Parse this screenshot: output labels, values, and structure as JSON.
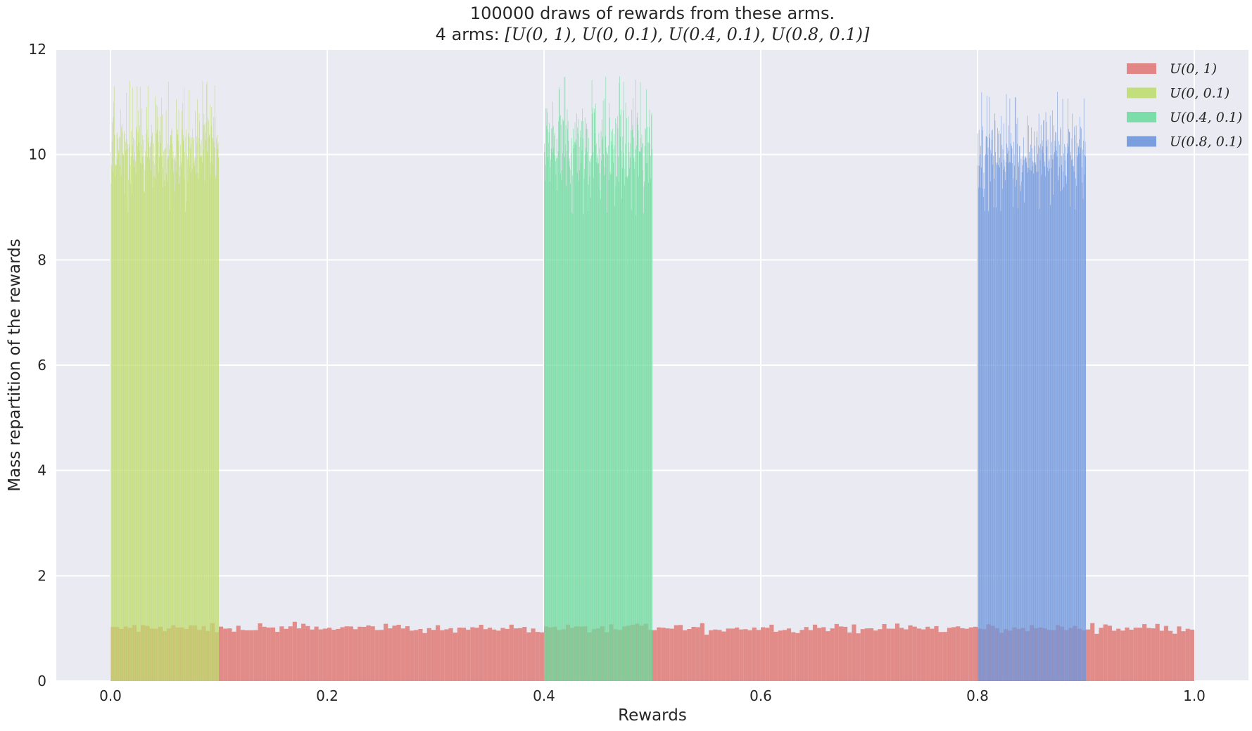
{
  "chart_data": {
    "type": "bar",
    "title": "100000 draws of rewards from these arms.",
    "subtitle_prefix": "4 arms: ",
    "subtitle_math": "[U(0, 1), U(0, 0.1), U(0.4, 0.1), U(0.8, 0.1)]",
    "xlabel": "Rewards",
    "ylabel": "Mass repartition of the rewards",
    "xlim": [
      -0.05,
      1.05
    ],
    "ylim": [
      0,
      12
    ],
    "xticks": [
      0.0,
      0.2,
      0.4,
      0.6,
      0.8,
      1.0
    ],
    "xtick_labels": [
      "0.0",
      "0.2",
      "0.4",
      "0.6",
      "0.8",
      "1.0"
    ],
    "yticks": [
      0,
      2,
      4,
      6,
      8,
      10,
      12
    ],
    "ytick_labels": [
      "0",
      "2",
      "4",
      "6",
      "8",
      "10",
      "12"
    ],
    "grid": true,
    "legend_position": "top-right",
    "series": [
      {
        "name": "U(0, 1)",
        "color": "#e07b78",
        "range": [
          0.0,
          1.0
        ],
        "bins": 250,
        "typical_height": 1.0,
        "min_height": 0.88,
        "max_height": 1.13
      },
      {
        "name": "U(0, 0.1)",
        "color": "#bfdd6f",
        "range": [
          0.0,
          0.1
        ],
        "bins": 250,
        "typical_height": 10.0,
        "min_height": 8.9,
        "max_height": 11.4
      },
      {
        "name": "U(0.4, 0.1)",
        "color": "#6fdc9e",
        "range": [
          0.4,
          0.5
        ],
        "bins": 250,
        "typical_height": 10.0,
        "min_height": 8.8,
        "max_height": 11.5
      },
      {
        "name": "U(0.8, 0.1)",
        "color": "#6f96dd",
        "range": [
          0.8,
          0.9
        ],
        "bins": 250,
        "typical_height": 10.0,
        "min_height": 8.9,
        "max_height": 11.2
      }
    ]
  }
}
